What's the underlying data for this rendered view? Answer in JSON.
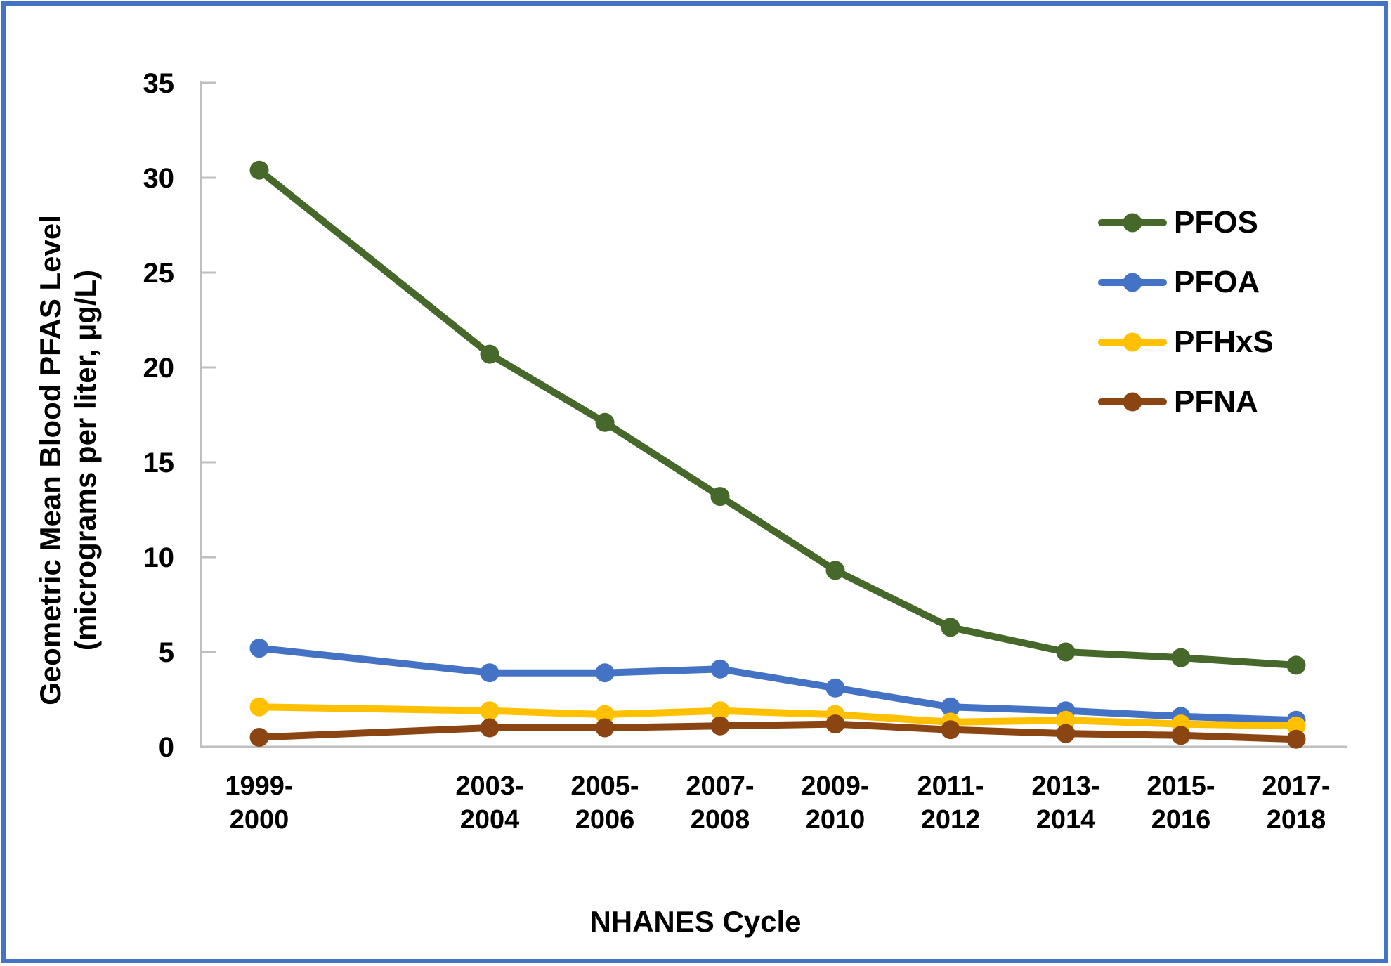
{
  "frame": {
    "border_color": "#4472C4",
    "background_color": "#FFFFFF"
  },
  "chart_data": {
    "type": "line",
    "title": "",
    "xlabel": "NHANES Cycle",
    "ylabel_line1": "Geometric Mean Blood PFAS Level",
    "ylabel_line2": "(micrograms per liter, µg/L)",
    "ylim": [
      0,
      35
    ],
    "yticks": [
      0,
      5,
      10,
      15,
      20,
      25,
      30,
      35
    ],
    "grid": false,
    "legend_position": "inside-top-right",
    "axis_color": "#BFBFBF",
    "text_color": "#000000",
    "categories": [
      {
        "line1": "1999-",
        "line2": "2000",
        "slot": 0
      },
      {
        "line1": "2003-",
        "line2": "2004",
        "slot": 2
      },
      {
        "line1": "2005-",
        "line2": "2006",
        "slot": 3
      },
      {
        "line1": "2007-",
        "line2": "2008",
        "slot": 4
      },
      {
        "line1": "2009-",
        "line2": "2010",
        "slot": 5
      },
      {
        "line1": "2011-",
        "line2": "2012",
        "slot": 6
      },
      {
        "line1": "2013-",
        "line2": "2014",
        "slot": 7
      },
      {
        "line1": "2015-",
        "line2": "2016",
        "slot": 8
      },
      {
        "line1": "2017-",
        "line2": "2018",
        "slot": 9
      }
    ],
    "series": [
      {
        "name": "PFOS",
        "color": "#46682B",
        "values": [
          30.4,
          20.7,
          17.1,
          13.2,
          9.3,
          6.3,
          5.0,
          4.7,
          4.3
        ]
      },
      {
        "name": "PFOA",
        "color": "#4472C4",
        "values": [
          5.2,
          3.9,
          3.9,
          4.1,
          3.1,
          2.1,
          1.9,
          1.6,
          1.4
        ]
      },
      {
        "name": "PFHxS",
        "color": "#FFC000",
        "values": [
          2.1,
          1.9,
          1.7,
          1.9,
          1.7,
          1.3,
          1.4,
          1.2,
          1.1
        ]
      },
      {
        "name": "PFNA",
        "color": "#8B4513",
        "values": [
          0.5,
          1.0,
          1.0,
          1.1,
          1.2,
          0.9,
          0.7,
          0.6,
          0.4
        ]
      }
    ]
  }
}
